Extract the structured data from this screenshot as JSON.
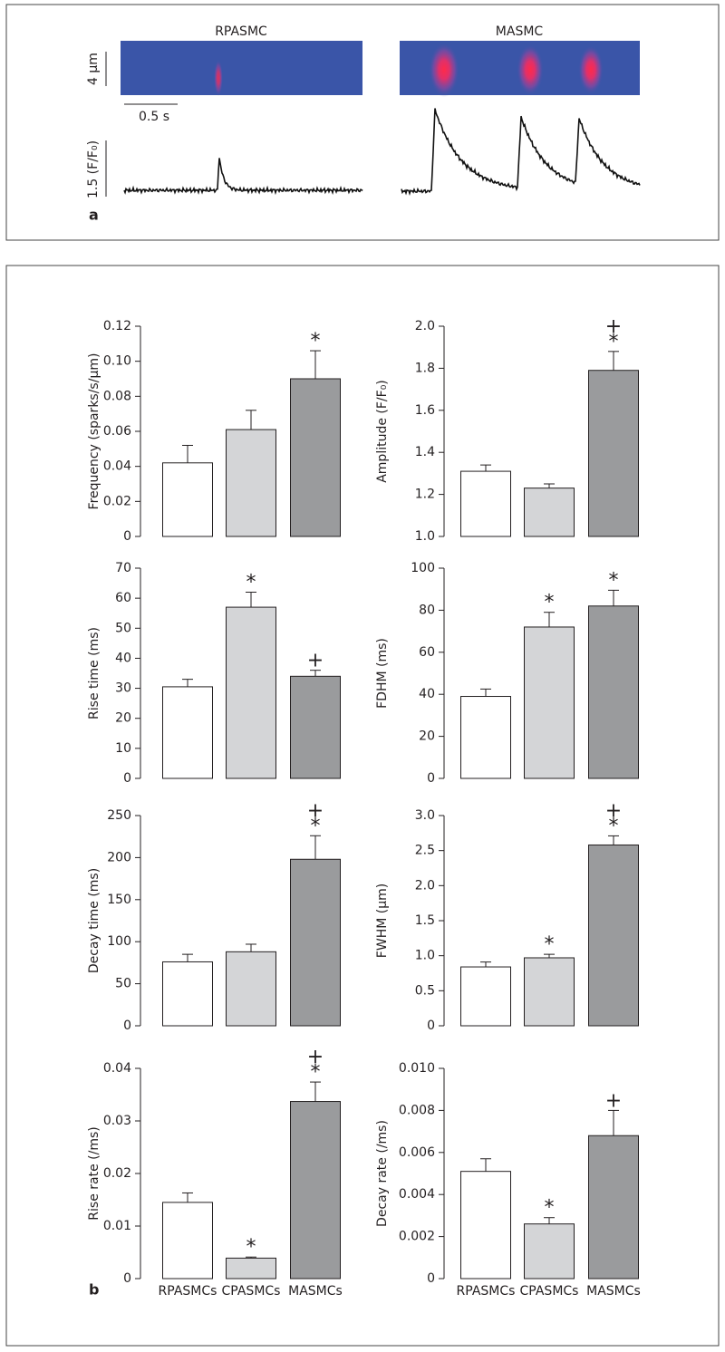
{
  "panel_a": {
    "label": "a",
    "left_title": "RPASMC",
    "right_title": "MASMC",
    "space_scale": "4 µm",
    "time_scale": "0.5 s",
    "amplitude_scale": "1.5 (F/F₀)"
  },
  "panel_b": {
    "label": "b"
  },
  "chart_data": [
    {
      "type": "bar",
      "y_label": "Frequency (sparks/s/µm)",
      "categories": [
        null,
        null,
        null
      ],
      "values": [
        0.042,
        0.061,
        0.09
      ],
      "errors": [
        0.01,
        0.011,
        0.016
      ],
      "colors": [
        "#ffffff",
        "#d4d5d7",
        "#9a9b9d"
      ],
      "annotations": [
        [],
        [],
        [
          "*"
        ]
      ],
      "ylim": [
        0,
        0.12
      ],
      "yticks": [
        0,
        0.02,
        0.04,
        0.06,
        0.08,
        {
          "value": 0.1,
          "label": "0.10"
        },
        0.12
      ]
    },
    {
      "type": "bar",
      "y_label": "Amplitude (F/F₀)",
      "categories": [
        null,
        null,
        null
      ],
      "values": [
        1.31,
        1.23,
        1.79
      ],
      "errors": [
        0.03,
        0.02,
        0.09
      ],
      "colors": [
        "#ffffff",
        "#d4d5d7",
        "#9a9b9d"
      ],
      "annotations": [
        [],
        [],
        [
          "+",
          "*"
        ]
      ],
      "ylim": [
        1,
        2
      ],
      "yticks": [
        {
          "value": 1,
          "label": "1.0"
        },
        1.2,
        1.4,
        1.6,
        1.8,
        {
          "value": 2,
          "label": "2.0"
        }
      ]
    },
    {
      "type": "bar",
      "y_label": "Rise time (ms)",
      "categories": [
        null,
        null,
        null
      ],
      "values": [
        30.5,
        57,
        34
      ],
      "errors": [
        2.5,
        5,
        2
      ],
      "colors": [
        "#ffffff",
        "#d4d5d7",
        "#9a9b9d"
      ],
      "annotations": [
        [],
        [
          "*"
        ],
        [
          "+"
        ]
      ],
      "ylim": [
        0,
        70
      ],
      "yticks": [
        0,
        10,
        20,
        30,
        40,
        50,
        60,
        70
      ]
    },
    {
      "type": "bar",
      "y_label": "FDHM (ms)",
      "categories": [
        null,
        null,
        null
      ],
      "values": [
        39,
        72,
        82
      ],
      "errors": [
        3.5,
        7,
        7.5
      ],
      "colors": [
        "#ffffff",
        "#d4d5d7",
        "#9a9b9d"
      ],
      "annotations": [
        [],
        [
          "*"
        ],
        [
          "*"
        ]
      ],
      "ylim": [
        0,
        100
      ],
      "yticks": [
        0,
        20,
        40,
        60,
        80,
        100
      ]
    },
    {
      "type": "bar",
      "y_label": "Decay time (ms)",
      "categories": [
        null,
        null,
        null
      ],
      "values": [
        76,
        88,
        198
      ],
      "errors": [
        9,
        9,
        28
      ],
      "colors": [
        "#ffffff",
        "#d4d5d7",
        "#9a9b9d"
      ],
      "annotations": [
        [],
        [],
        [
          "+",
          "*"
        ]
      ],
      "ylim": [
        0,
        250
      ],
      "yticks": [
        0,
        50,
        100,
        150,
        200,
        250
      ]
    },
    {
      "type": "bar",
      "y_label": "FWHM (µm)",
      "categories": [
        null,
        null,
        null
      ],
      "values": [
        0.84,
        0.97,
        2.58
      ],
      "errors": [
        0.07,
        0.05,
        0.13
      ],
      "colors": [
        "#ffffff",
        "#d4d5d7",
        "#9a9b9d"
      ],
      "annotations": [
        [],
        [
          "*"
        ],
        [
          "+",
          "*"
        ]
      ],
      "ylim": [
        0,
        3
      ],
      "yticks": [
        0,
        0.5,
        {
          "value": 1,
          "label": "1.0"
        },
        1.5,
        {
          "value": 2,
          "label": "2.0"
        },
        2.5,
        {
          "value": 3,
          "label": "3.0"
        }
      ]
    },
    {
      "type": "bar",
      "y_label": "Rise rate (/ms)",
      "categories": [
        "RPASMCs",
        "CPASMCs",
        "MASMCs"
      ],
      "values": [
        0.0145,
        0.0039,
        0.0337
      ],
      "errors": [
        0.0018,
        0.0002,
        0.0037
      ],
      "colors": [
        "#ffffff",
        "#d4d5d7",
        "#9a9b9d"
      ],
      "annotations": [
        [],
        [
          "*"
        ],
        [
          "+",
          "*"
        ]
      ],
      "ylim": [
        0,
        0.04
      ],
      "yticks": [
        0,
        0.01,
        0.02,
        0.03,
        0.04
      ]
    },
    {
      "type": "bar",
      "y_label": "Decay rate (/ms)",
      "categories": [
        "RPASMCs",
        "CPASMCs",
        "MASMCs"
      ],
      "values": [
        0.0051,
        0.0026,
        0.0068
      ],
      "errors": [
        0.0006,
        0.0003,
        0.0012
      ],
      "colors": [
        "#ffffff",
        "#d4d5d7",
        "#9a9b9d"
      ],
      "annotations": [
        [],
        [
          "*"
        ],
        [
          "+"
        ]
      ],
      "ylim": [
        0,
        0.01
      ],
      "yticks": [
        0,
        0.002,
        0.004,
        0.006,
        0.008,
        {
          "value": 0.01,
          "label": "0.010"
        }
      ]
    }
  ]
}
